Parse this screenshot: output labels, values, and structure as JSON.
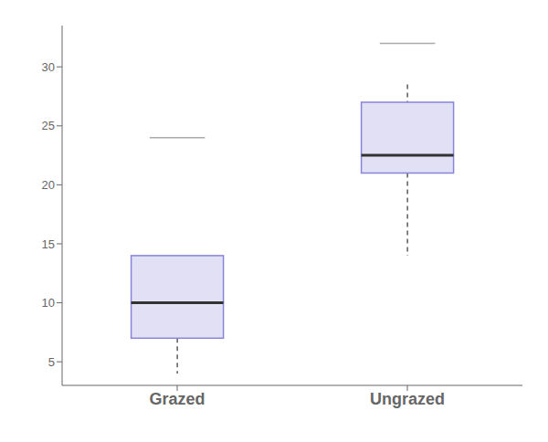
{
  "chart_data": {
    "type": "box",
    "categories": [
      "Grazed",
      "Ungrazed"
    ],
    "whislo": [
      4.0,
      14.0
    ],
    "q1": [
      7.0,
      21.0
    ],
    "med": [
      10.0,
      22.5
    ],
    "q3": [
      14.0,
      27.0
    ],
    "whishi": [
      14.0,
      28.5
    ],
    "fliers": [
      24.0,
      32.0
    ],
    "ylim": [
      3.0,
      33.5
    ],
    "yticks": [
      5,
      10,
      15,
      20,
      25,
      30
    ]
  }
}
